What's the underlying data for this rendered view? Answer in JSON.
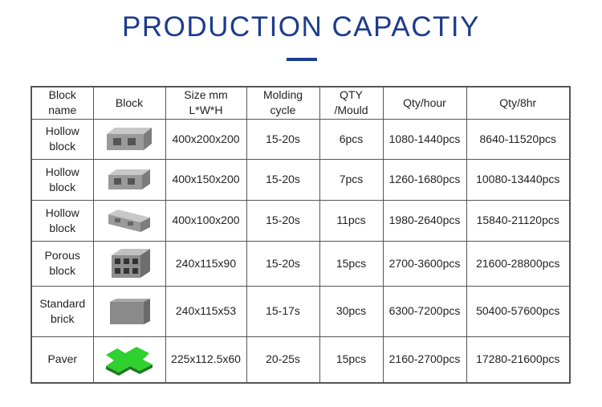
{
  "header": {
    "title": "PRODUCTION CAPACTIY"
  },
  "table": {
    "columns": [
      [
        "Block",
        "name"
      ],
      [
        "Block"
      ],
      [
        "Size mm",
        "L*W*H"
      ],
      [
        "Molding",
        "cycle"
      ],
      [
        "QTY",
        "/Mould"
      ],
      [
        "Qty/hour"
      ],
      [
        "Qty/8hr"
      ]
    ],
    "rows": [
      [
        [
          "Hollow",
          "block"
        ],
        "400x200x200",
        "15-20s",
        "6pcs",
        "1080-1440pcs",
        "8640-11520pcs"
      ],
      [
        [
          "Hollow",
          "block"
        ],
        "400x150x200",
        "15-20s",
        "7pcs",
        "1260-1680pcs",
        "10080-13440pcs"
      ],
      [
        [
          "Hollow",
          "block"
        ],
        "400x100x200",
        "15-20s",
        "11pcs",
        "1980-2640pcs",
        "15840-21120pcs"
      ],
      [
        [
          "Porous",
          "block"
        ],
        "240x115x90",
        "15-20s",
        "15pcs",
        "2700-3600pcs",
        "21600-28800pcs"
      ],
      [
        [
          "Standard",
          "brick"
        ],
        "240x115x53",
        "15-17s",
        "30pcs",
        "6300-7200pcs",
        "50400-57600pcs"
      ],
      [
        [
          "Paver"
        ],
        "225x112.5x60",
        "20-25s",
        "15pcs",
        "2160-2700pcs",
        "17280-21600pcs"
      ]
    ]
  }
}
